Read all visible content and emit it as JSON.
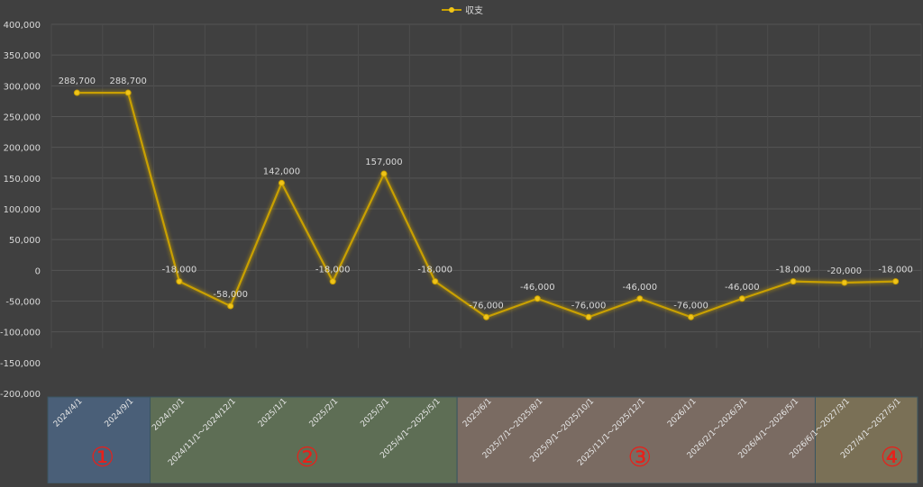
{
  "chart_data": {
    "type": "line",
    "title": "",
    "legend": {
      "label": "収支",
      "placement": "top-center"
    },
    "ylim": [
      -200000,
      400000
    ],
    "y_ticks": [
      "400,000",
      "350,000",
      "300,000",
      "250,000",
      "200,000",
      "150,000",
      "100,000",
      "50,000",
      "0",
      "-50,000",
      "-100,000",
      "-150,000",
      "-200,000"
    ],
    "categories": [
      "2024/4/1",
      "2024/9/1",
      "2024/10/1",
      "2024/11/1～2024/12/1",
      "2025/1/1",
      "2025/2/1",
      "2025/3/1",
      "2025/4/1～2025/5/1",
      "2025/6/1",
      "2025/7/1～2025/8/1",
      "2025/9/1～2025/10/1",
      "2025/11/1～2025/12/1",
      "2026/1/1",
      "2026/2/1～2026/3/1",
      "2026/4/1～2026/5/1",
      "2026/6/1～2027/3/1",
      "2027/4/1～2027/5/1"
    ],
    "series": [
      {
        "name": "収支",
        "color": "#C9A000",
        "values": [
          288700,
          288700,
          -18000,
          -58000,
          142000,
          -18000,
          157000,
          -18000,
          -76000,
          -46000,
          -76000,
          -46000,
          -76000,
          -46000,
          -18000,
          -20000,
          -18000
        ],
        "data_labels": [
          "288,700",
          "288,700",
          "-18,000",
          "-58,000",
          "142,000",
          "-18,000",
          "157,000",
          "-18,000",
          "-76,000",
          "-46,000",
          "-76,000",
          "-46,000",
          "-76,000",
          "-46,000",
          "-18,000",
          "-20,000",
          "-18,000"
        ]
      }
    ],
    "grid": true,
    "phases": [
      {
        "label": "①",
        "from": 0,
        "to": 1,
        "color": "#4A5F78"
      },
      {
        "label": "②",
        "from": 2,
        "to": 7,
        "color": "#5E6E55"
      },
      {
        "label": "③",
        "from": 8,
        "to": 14,
        "color": "#7A6B62"
      },
      {
        "label": "④",
        "from": 15,
        "to": 16,
        "color": "#7A7056"
      }
    ],
    "phase_label_color": "#E8201A"
  }
}
